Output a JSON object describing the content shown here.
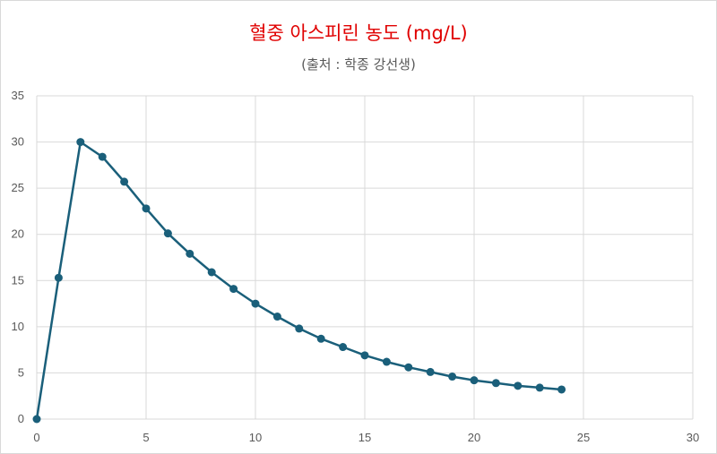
{
  "chart_data": {
    "type": "line",
    "title": "혈중 아스피린 농도 (mg/L)",
    "subtitle": "(출처 : 학종 강선생)",
    "xlabel": "",
    "ylabel": "",
    "xlim": [
      0,
      30
    ],
    "ylim": [
      0,
      35
    ],
    "x_ticks": [
      0,
      5,
      10,
      15,
      20,
      25,
      30
    ],
    "y_ticks": [
      0,
      5,
      10,
      15,
      20,
      25,
      30,
      35
    ],
    "grid": true,
    "legend": "none",
    "series": [
      {
        "name": "혈중 아스피린 농도",
        "color": "#1a5f7a",
        "x": [
          0,
          1,
          2,
          3,
          4,
          5,
          6,
          7,
          8,
          9,
          10,
          11,
          12,
          13,
          14,
          15,
          16,
          17,
          18,
          19,
          20,
          21,
          22,
          23,
          24
        ],
        "values": [
          0,
          15.3,
          30.0,
          28.4,
          25.7,
          22.8,
          20.1,
          17.9,
          15.9,
          14.1,
          12.5,
          11.1,
          9.8,
          8.7,
          7.8,
          6.9,
          6.2,
          5.6,
          5.1,
          4.6,
          4.2,
          3.9,
          3.6,
          3.4,
          3.2
        ]
      }
    ]
  }
}
